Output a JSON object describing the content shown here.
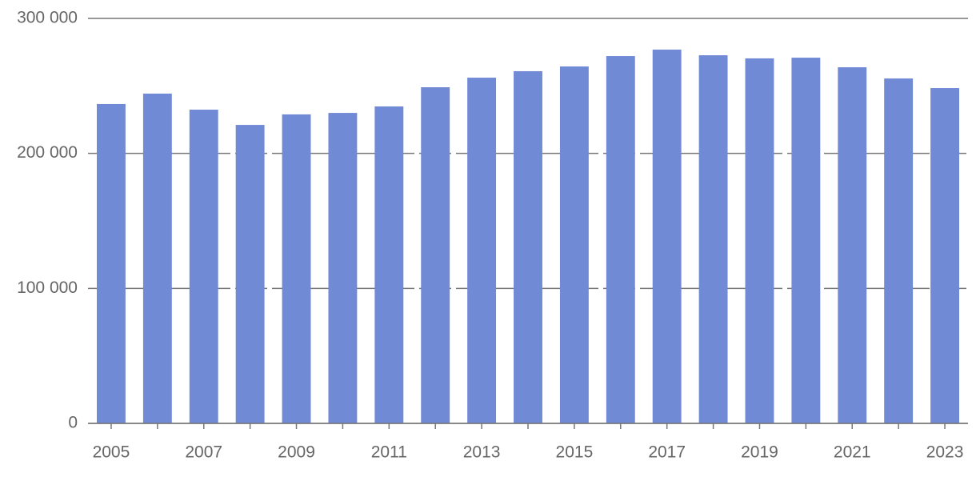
{
  "chart_data": {
    "type": "bar",
    "categories": [
      "2005",
      null,
      "2007",
      null,
      "2009",
      null,
      "2011",
      null,
      "2013",
      null,
      "2015",
      null,
      "2017",
      null,
      "2019",
      null,
      "2021",
      null,
      "2023"
    ],
    "values": [
      236600,
      244300,
      232400,
      221100,
      228900,
      230000,
      234800,
      249000,
      256100,
      260900,
      264400,
      272100,
      276900,
      272700,
      270400,
      270900,
      263800,
      255500,
      248400
    ],
    "color": "#718ad6",
    "ylim": [
      0,
      300000
    ],
    "yticks": [
      0,
      {
        "value": 100000,
        "label": "100 000"
      },
      {
        "value": 200000,
        "label": "200 000"
      },
      {
        "value": 300000,
        "label": "300 000"
      }
    ],
    "grid": true
  }
}
